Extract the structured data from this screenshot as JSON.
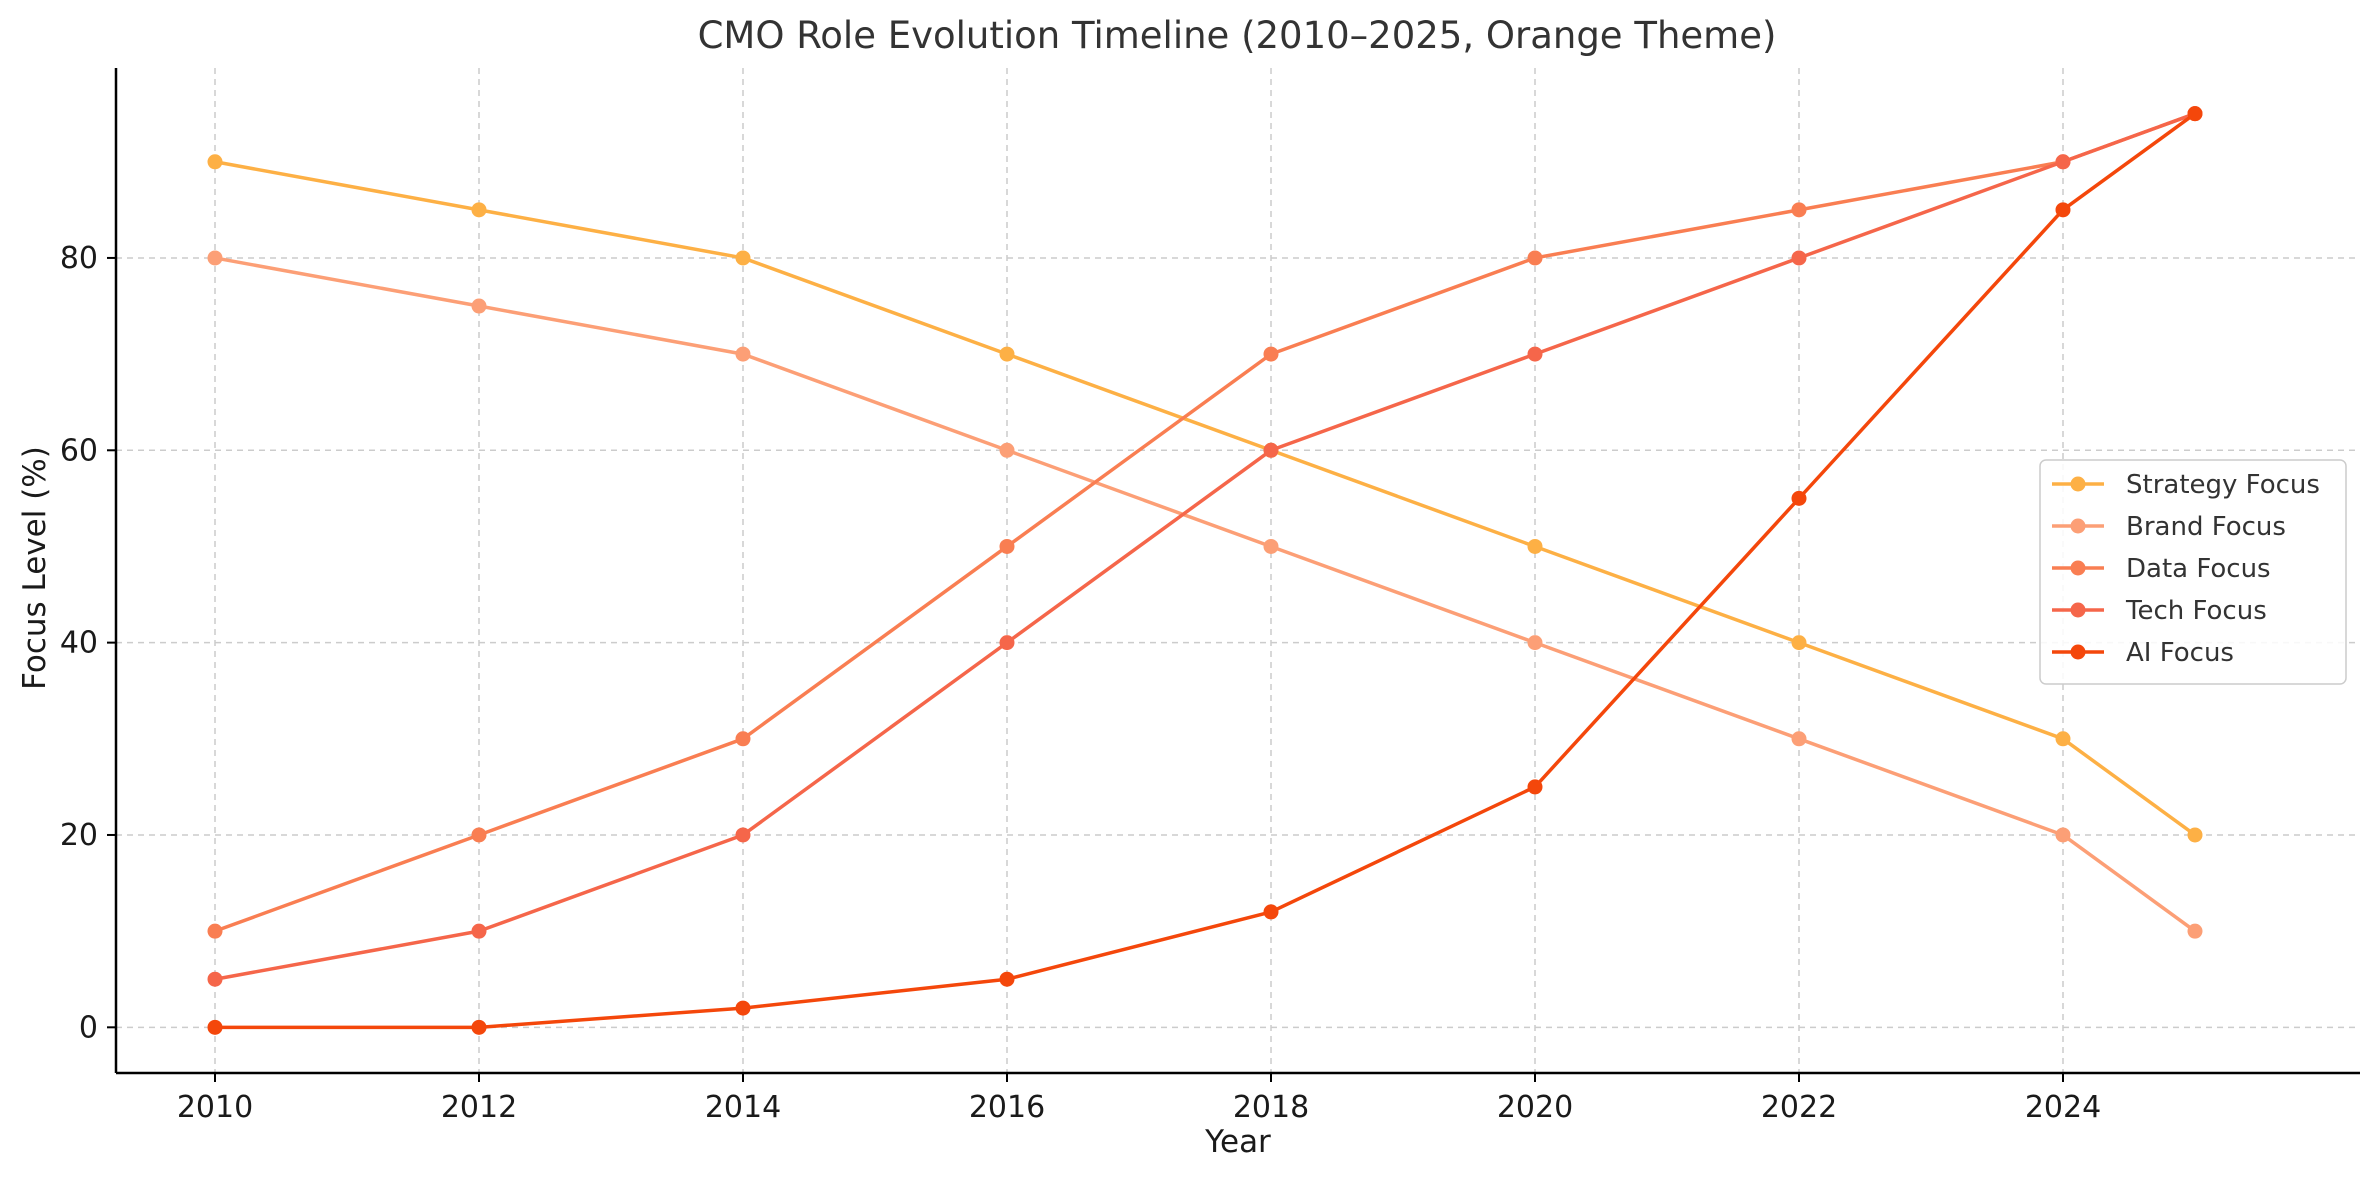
{
  "chart_data": {
    "type": "line",
    "title": "CMO Role Evolution Timeline (2010–2025, Orange Theme)",
    "xlabel": "Year",
    "ylabel": "Focus Level (%)",
    "x": [
      2010,
      2012,
      2014,
      2016,
      2018,
      2020,
      2022,
      2024,
      2025
    ],
    "xticks": [
      2010,
      2012,
      2014,
      2016,
      2018,
      2020,
      2022,
      2024
    ],
    "yticks": [
      0,
      20,
      40,
      60,
      80
    ],
    "xlim": [
      2009.25,
      2026.25
    ],
    "ylim": [
      -4.75,
      99.75
    ],
    "grid": true,
    "legend_position": "center-right",
    "series": [
      {
        "name": "Strategy Focus",
        "color": "#FDB045",
        "values": [
          90,
          85,
          80,
          70,
          60,
          50,
          40,
          30,
          20
        ]
      },
      {
        "name": "Brand Focus",
        "color": "#FC9F76",
        "values": [
          80,
          75,
          70,
          60,
          50,
          40,
          30,
          20,
          10
        ]
      },
      {
        "name": "Data Focus",
        "color": "#F97E52",
        "values": [
          10,
          20,
          30,
          50,
          70,
          80,
          85,
          90,
          95
        ]
      },
      {
        "name": "Tech Focus",
        "color": "#F5664A",
        "values": [
          5,
          10,
          20,
          40,
          60,
          70,
          80,
          90,
          95
        ]
      },
      {
        "name": "AI Focus",
        "color": "#F4470B",
        "values": [
          0,
          0,
          2,
          5,
          12,
          25,
          55,
          85,
          95
        ]
      }
    ]
  }
}
